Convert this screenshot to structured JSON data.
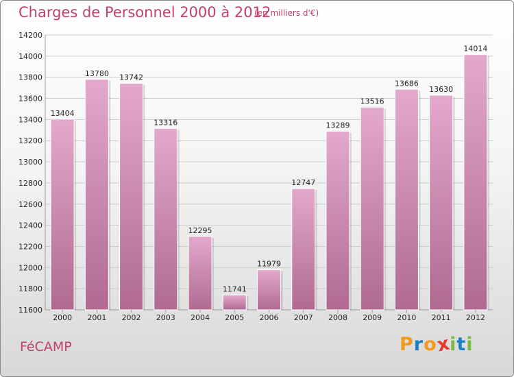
{
  "title": "Charges de Personnel 2000 à 2012",
  "subtitle": "(en milliers d'€)",
  "place": "FéCAMP",
  "logo": {
    "letters": [
      "P",
      "r",
      "o",
      "x",
      "i",
      "t",
      "i"
    ],
    "colors": [
      "#f29a1f",
      "#1d7fc4",
      "#f29a1f",
      "#e53a2e",
      "#7ab648",
      "#1d7fc4",
      "#7ab648"
    ]
  },
  "colors": {
    "bar_top": "#e3a9cc",
    "bar_bottom": "#b06a91",
    "accent": "#c2406a",
    "grid": "#cccccc"
  },
  "chart_data": {
    "type": "bar",
    "categories": [
      "2000",
      "2001",
      "2002",
      "2003",
      "2004",
      "2005",
      "2006",
      "2007",
      "2008",
      "2009",
      "2010",
      "2011",
      "2012"
    ],
    "values": [
      13404,
      13780,
      13742,
      13316,
      12295,
      11741,
      11979,
      12747,
      13289,
      13516,
      13686,
      13630,
      14014
    ],
    "ylim": [
      11600,
      14200
    ],
    "yticks": [
      11600,
      11800,
      12000,
      12200,
      12400,
      12600,
      12800,
      13000,
      13200,
      13400,
      13600,
      13800,
      14000,
      14200
    ],
    "grid": true
  }
}
